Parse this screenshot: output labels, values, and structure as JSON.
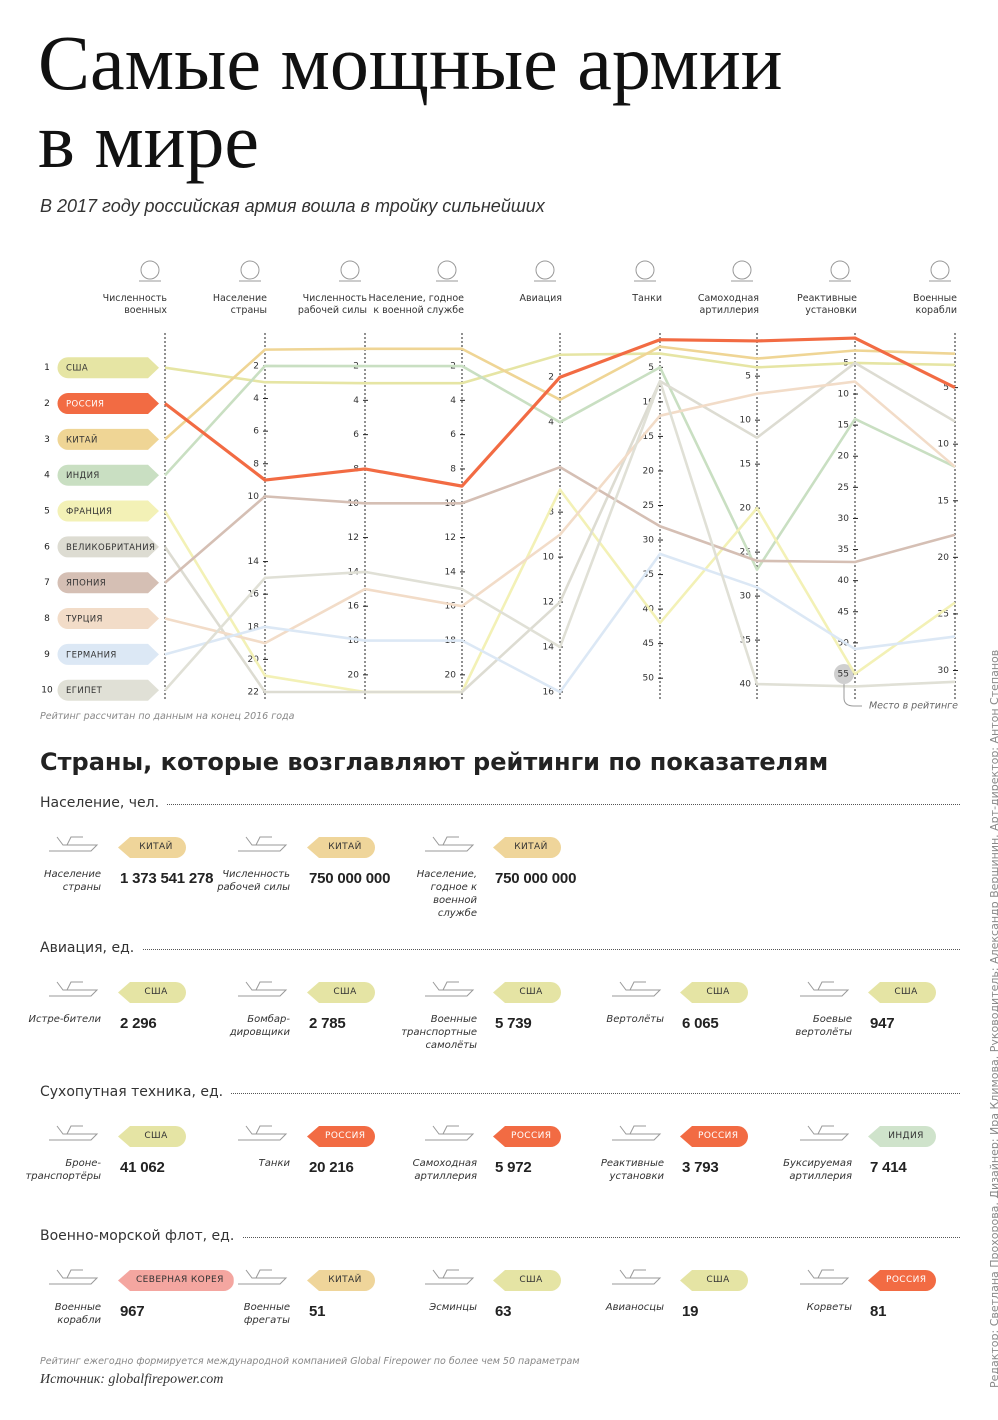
{
  "title": "Самые мощные армии в мире",
  "subtitle": "В 2017 году российская армия вошла в тройку сильнейших",
  "chart_data": {
    "type": "parallel",
    "axes": [
      {
        "label": "Численность военных",
        "ylim": [
          0.45,
          10.05
        ]
      },
      {
        "label": "Население страны",
        "ylim": [
          0.9,
          22
        ],
        "yticks": [
          2,
          4,
          6,
          8,
          10,
          14,
          16,
          18,
          20,
          22
        ]
      },
      {
        "label": "Численность рабочей силы",
        "ylim": [
          0.95,
          21
        ],
        "yticks": [
          2,
          4,
          6,
          8,
          10,
          12,
          14,
          16,
          18,
          20
        ]
      },
      {
        "label": "Население, годное к военной службе",
        "ylim": [
          0.95,
          21
        ],
        "yticks": [
          2,
          4,
          6,
          8,
          10,
          12,
          14,
          16,
          18,
          20
        ]
      },
      {
        "label": "Авиация",
        "ylim": [
          0.7,
          16
        ],
        "yticks": [
          2,
          4,
          8,
          10,
          12,
          14,
          16
        ]
      },
      {
        "label": "Танки",
        "ylim": [
          2.2,
          52
        ],
        "yticks": [
          5,
          10,
          15,
          20,
          25,
          30,
          35,
          40,
          45,
          50
        ]
      },
      {
        "label": "Самоходная артиллерия",
        "ylim": [
          1.8,
          40.9
        ],
        "yticks": [
          5,
          10,
          15,
          20,
          25,
          30,
          35,
          40
        ]
      },
      {
        "label": "Реактивные установки",
        "ylim": [
          2.6,
          57.9
        ],
        "yticks": [
          5,
          10,
          15,
          20,
          25,
          30,
          35,
          40,
          45,
          50,
          55
        ]
      },
      {
        "label": "Военные корабли",
        "ylim": [
          1.5,
          31.9
        ],
        "yticks": [
          5,
          10,
          15,
          20,
          25,
          30
        ]
      }
    ],
    "series": [
      {
        "name": "США",
        "color": "#e6e5a4",
        "values": [
          1,
          3,
          3,
          3,
          1,
          3,
          4,
          5,
          3
        ]
      },
      {
        "name": "РОССИЯ",
        "color": "#f26b43",
        "highlight": true,
        "values": [
          2,
          9,
          8,
          9,
          2,
          1,
          1,
          1,
          5
        ]
      },
      {
        "name": "КИТАЙ",
        "color": "#efd595",
        "values": [
          3,
          1,
          1,
          1,
          3,
          2,
          3,
          3,
          2
        ]
      },
      {
        "name": "ИНДИЯ",
        "color": "#c9dfc2",
        "values": [
          4,
          2,
          2,
          2,
          4,
          5,
          27,
          14,
          12
        ]
      },
      {
        "name": "ФРАНЦИЯ",
        "color": "#f3f1b6",
        "values": [
          5,
          21,
          21,
          21,
          7,
          42,
          20,
          55,
          24
        ]
      },
      {
        "name": "ВЕЛИКОБРИТАНИЯ",
        "color": "#dddcd2",
        "values": [
          6,
          22,
          21,
          21,
          12,
          7,
          12,
          5,
          8
        ]
      },
      {
        "name": "ЯПОНИЯ",
        "color": "#d5bfb4",
        "values": [
          7,
          10,
          10,
          10,
          6,
          28,
          26,
          37,
          18
        ]
      },
      {
        "name": "ТУРЦИЯ",
        "color": "#f2dcc8",
        "values": [
          8,
          19,
          15,
          16,
          9,
          12,
          7,
          8,
          12
        ]
      },
      {
        "name": "ГЕРМАНИЯ",
        "color": "#dce8f5",
        "values": [
          9,
          18,
          18,
          18,
          16,
          32,
          29,
          51,
          27
        ]
      },
      {
        "name": "ЕГИПЕТ",
        "color": "#e0e0d6",
        "values": [
          10,
          15,
          14,
          15,
          14,
          7,
          40,
          57,
          31
        ]
      }
    ],
    "annotation": {
      "text": "Место в рейтинге",
      "axis": 7,
      "tick": 10
    },
    "note": "Рейтинг рассчитан по данным на конец 2016 года"
  },
  "leaders": {
    "title": "Страны, которые возглавляют рейтинги по показателям",
    "sections": [
      {
        "title": "Население, чел.",
        "items": [
          {
            "label": "Население страны",
            "country": "КИТАЙ",
            "tag_color": "#efd59a",
            "value": "1 373 541 278"
          },
          {
            "label": "Численность рабочей силы",
            "country": "КИТАЙ",
            "tag_color": "#efd59a",
            "value": "750 000 000"
          },
          {
            "label": "Население, годное к военной службе",
            "country": "КИТАЙ",
            "tag_color": "#efd59a",
            "value": "750 000 000"
          }
        ]
      },
      {
        "title": "Авиация, ед.",
        "items": [
          {
            "label": "Истре-бители",
            "country": "США",
            "tag_color": "#e5e4a4",
            "value": "2 296"
          },
          {
            "label": "Бомбар-дировщики",
            "country": "США",
            "tag_color": "#e5e4a4",
            "value": "2 785"
          },
          {
            "label": "Военные транспортные самолёты",
            "country": "США",
            "tag_color": "#e5e4a4",
            "value": "5 739"
          },
          {
            "label": "Вертолёты",
            "country": "США",
            "tag_color": "#e5e4a4",
            "value": "6 065"
          },
          {
            "label": "Боевые вертолёты",
            "country": "США",
            "tag_color": "#e5e4a4",
            "value": "947"
          }
        ]
      },
      {
        "title": "Сухопутная техника, ед.",
        "items": [
          {
            "label": "Броне-транспортёры",
            "country": "США",
            "tag_color": "#e5e4a4",
            "value": "41 062"
          },
          {
            "label": "Танки",
            "country": "РОССИЯ",
            "tag_color": "#f26b43",
            "value": "20 216"
          },
          {
            "label": "Самоходная артиллерия",
            "country": "РОССИЯ",
            "tag_color": "#f26b43",
            "value": "5 972"
          },
          {
            "label": "Реактивные установки",
            "country": "РОССИЯ",
            "tag_color": "#f26b43",
            "value": "3 793"
          },
          {
            "label": "Буксируемая артиллерия",
            "country": "ИНДИЯ",
            "tag_color": "#cfe3cb",
            "value": "7 414"
          }
        ]
      },
      {
        "title": "Военно-морской флот, ед.",
        "items": [
          {
            "label": "Военные корабли",
            "country": "СЕВЕРНАЯ КОРЕЯ",
            "tag_color": "#f4a6a0",
            "value": "967"
          },
          {
            "label": "Военные фрегаты",
            "country": "КИТАЙ",
            "tag_color": "#efd59a",
            "value": "51"
          },
          {
            "label": "Эсминцы",
            "country": "США",
            "tag_color": "#e5e4a4",
            "value": "63"
          },
          {
            "label": "Авианосцы",
            "country": "США",
            "tag_color": "#e5e4a4",
            "value": "19"
          },
          {
            "label": "Корветы",
            "country": "РОССИЯ",
            "tag_color": "#f26b43",
            "value": "81"
          }
        ]
      }
    ]
  },
  "footer": {
    "note": "Рейтинг ежегодно формируется международной компанией Global Firepower по более чем 50 параметрам",
    "source_label": "Источник:",
    "source": "globalfirepower.com"
  },
  "credits": "Редактор: Светлана Прохорова. Дизайнер: Ира Климова. Руководитель: Александр Вершинин. Арт-директор: Антон Степанов"
}
